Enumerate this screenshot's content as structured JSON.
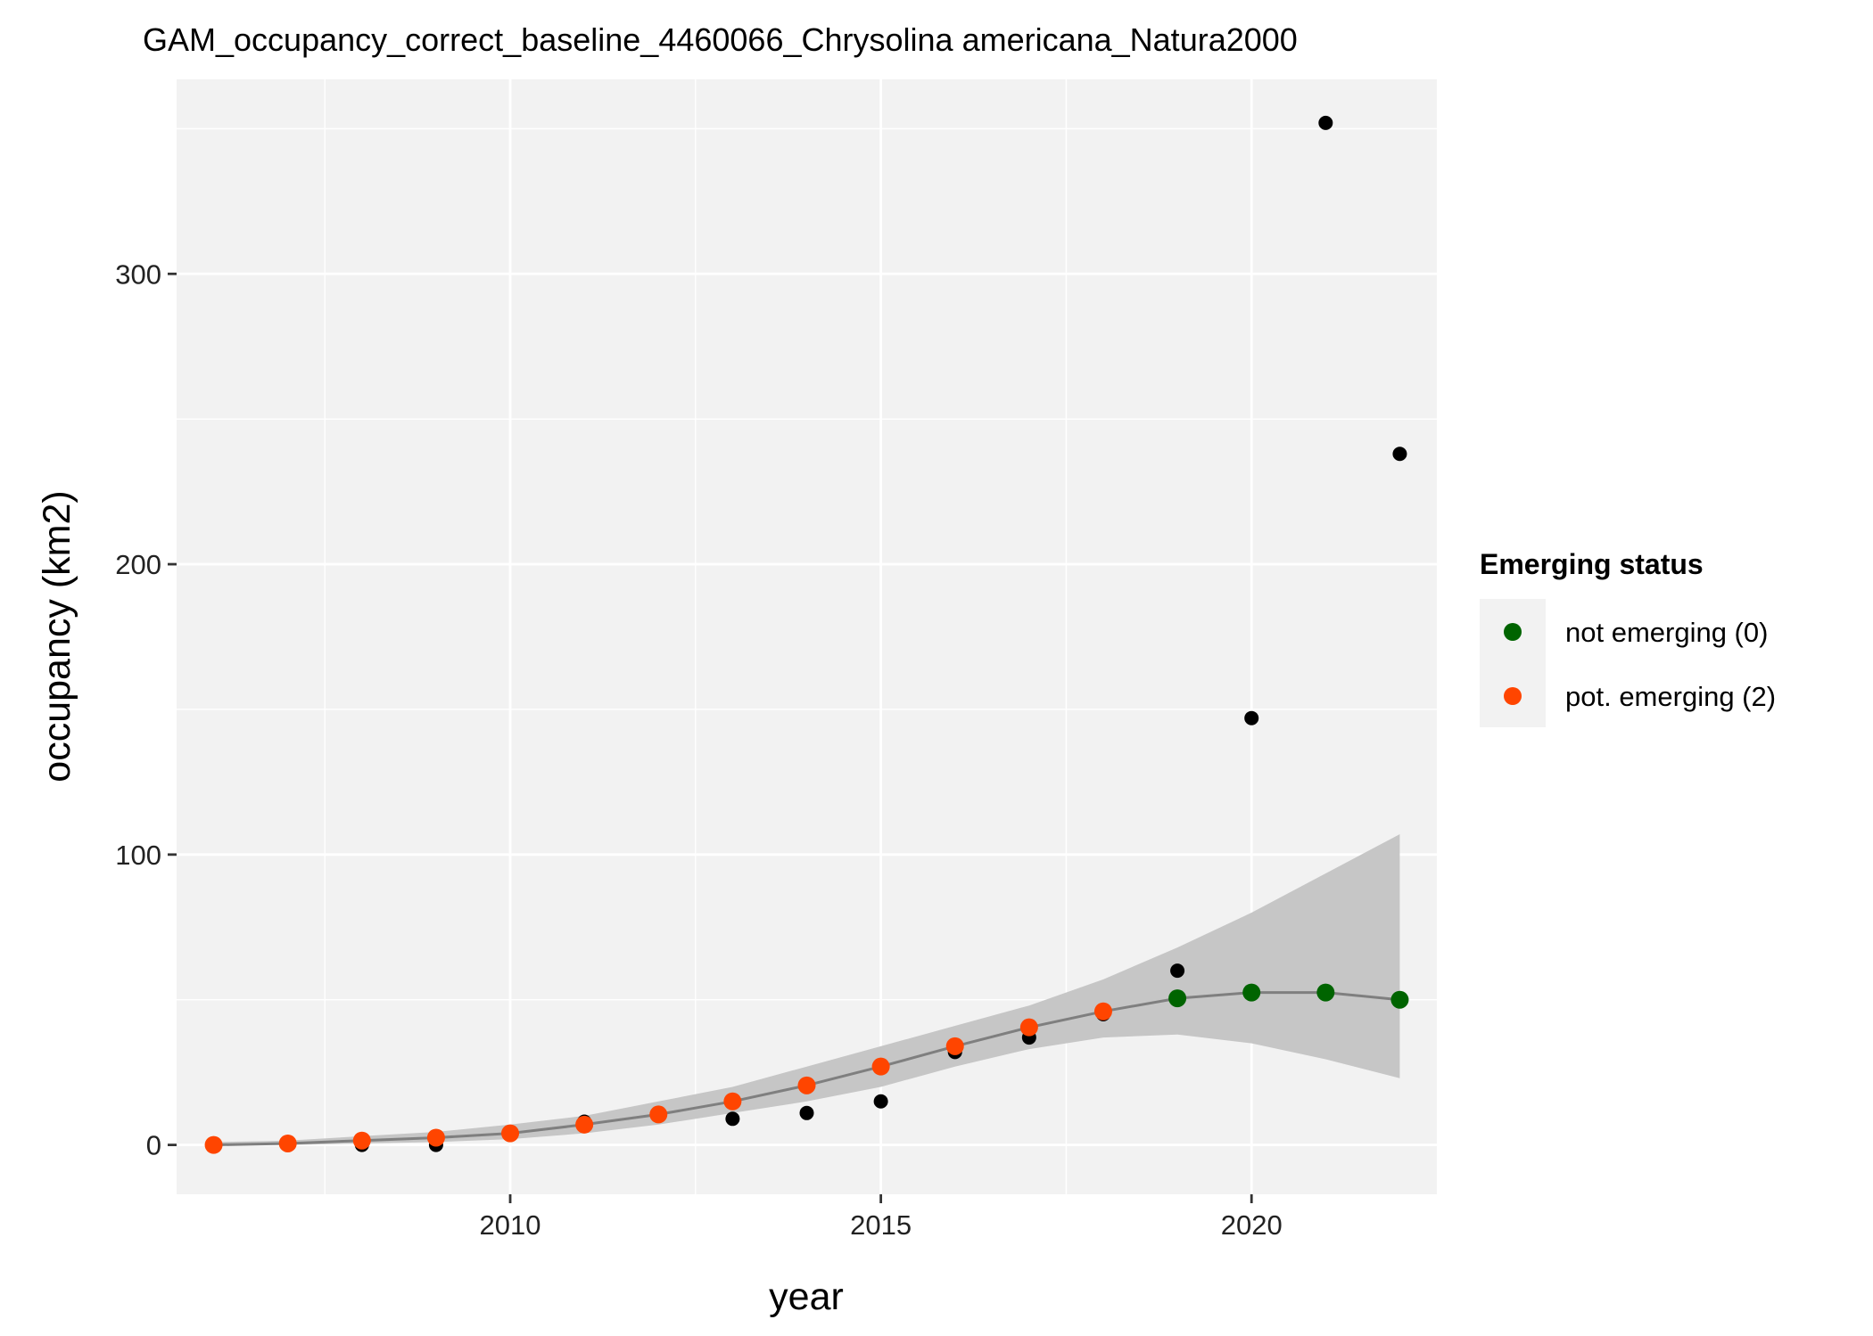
{
  "chart_data": {
    "type": "scatter",
    "title": "GAM_occupancy_correct_baseline_4460066_Chrysolina americana_Natura2000",
    "xlabel": "year",
    "ylabel": "occupancy (km2)",
    "xlim": [
      2005.5,
      2022.5
    ],
    "ylim": [
      -17,
      367
    ],
    "x_ticks": [
      2010,
      2015,
      2020
    ],
    "y_ticks": [
      0,
      100,
      200,
      300
    ],
    "grid": true,
    "legend": {
      "title": "Emerging status",
      "position": "right",
      "entries": [
        {
          "label": "not emerging (0)",
          "color": "#006400"
        },
        {
          "label": "pot. emerging (2)",
          "color": "#FF4500"
        }
      ]
    },
    "observed": {
      "color": "#000000",
      "points": [
        {
          "x": 2006,
          "y": 0
        },
        {
          "x": 2007,
          "y": 1
        },
        {
          "x": 2008,
          "y": 0
        },
        {
          "x": 2009,
          "y": 0
        },
        {
          "x": 2010,
          "y": 4
        },
        {
          "x": 2011,
          "y": 8
        },
        {
          "x": 2012,
          "y": 11
        },
        {
          "x": 2013,
          "y": 9
        },
        {
          "x": 2014,
          "y": 11
        },
        {
          "x": 2015,
          "y": 15
        },
        {
          "x": 2016,
          "y": 32
        },
        {
          "x": 2017,
          "y": 37
        },
        {
          "x": 2018,
          "y": 45
        },
        {
          "x": 2019,
          "y": 60
        },
        {
          "x": 2020,
          "y": 147
        },
        {
          "x": 2021,
          "y": 352
        },
        {
          "x": 2022,
          "y": 238
        }
      ]
    },
    "fitted": {
      "line_color": "#7f7f7f",
      "ribbon_color": "#c6c6c6",
      "points": [
        {
          "x": 2006,
          "y": 0,
          "lower": 0,
          "upper": 1,
          "status": 2
        },
        {
          "x": 2007,
          "y": 0.5,
          "lower": 0,
          "upper": 1.5,
          "status": 2
        },
        {
          "x": 2008,
          "y": 1.5,
          "lower": 0.5,
          "upper": 3,
          "status": 2
        },
        {
          "x": 2009,
          "y": 2.5,
          "lower": 1,
          "upper": 4.5,
          "status": 2
        },
        {
          "x": 2010,
          "y": 4,
          "lower": 2,
          "upper": 7,
          "status": 2
        },
        {
          "x": 2011,
          "y": 7,
          "lower": 4,
          "upper": 10,
          "status": 2
        },
        {
          "x": 2012,
          "y": 10.5,
          "lower": 7,
          "upper": 15,
          "status": 2
        },
        {
          "x": 2013,
          "y": 15,
          "lower": 11,
          "upper": 20,
          "status": 2
        },
        {
          "x": 2014,
          "y": 20.5,
          "lower": 15,
          "upper": 27,
          "status": 2
        },
        {
          "x": 2015,
          "y": 27,
          "lower": 20,
          "upper": 34,
          "status": 2
        },
        {
          "x": 2016,
          "y": 34,
          "lower": 27,
          "upper": 41,
          "status": 2
        },
        {
          "x": 2017,
          "y": 40.5,
          "lower": 33,
          "upper": 48,
          "status": 2
        },
        {
          "x": 2018,
          "y": 46,
          "lower": 37,
          "upper": 57,
          "status": 2
        },
        {
          "x": 2019,
          "y": 50.5,
          "lower": 38,
          "upper": 68,
          "status": 0
        },
        {
          "x": 2020,
          "y": 52.5,
          "lower": 35,
          "upper": 80,
          "status": 0
        },
        {
          "x": 2021,
          "y": 52.5,
          "lower": 29.5,
          "upper": 93.5,
          "status": 0
        },
        {
          "x": 2022,
          "y": 50,
          "lower": 23,
          "upper": 107,
          "status": 0
        }
      ]
    }
  }
}
